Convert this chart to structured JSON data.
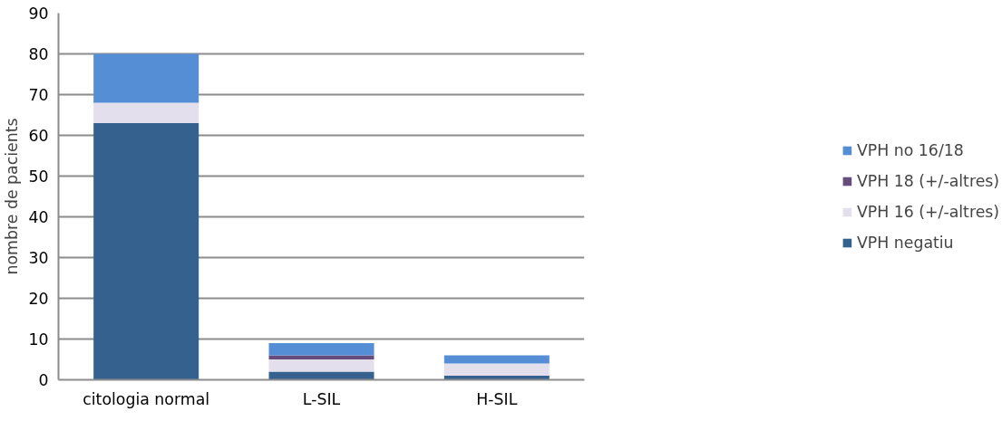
{
  "chart_data": {
    "type": "bar",
    "stacked": true,
    "ylabel": "nombre de pacients",
    "categories": [
      "citologia normal",
      "L-SIL",
      "H-SIL"
    ],
    "series": [
      {
        "name": "VPH negatiu",
        "color": "#35618f",
        "values": [
          63,
          2,
          1
        ]
      },
      {
        "name": "VPH 16 (+/-altres)",
        "color": "#e4dfec",
        "values": [
          5,
          3,
          3
        ]
      },
      {
        "name": "VPH 18 (+/-altres)",
        "color": "#664d7d",
        "values": [
          0,
          1,
          0
        ]
      },
      {
        "name": "VPH no 16/18",
        "color": "#558ed5",
        "values": [
          12,
          3,
          2
        ]
      }
    ],
    "ylim": [
      0,
      90
    ],
    "yticks": [
      0,
      10,
      20,
      30,
      40,
      50,
      60,
      70,
      80,
      90
    ],
    "grid": "y",
    "legend": "right"
  }
}
